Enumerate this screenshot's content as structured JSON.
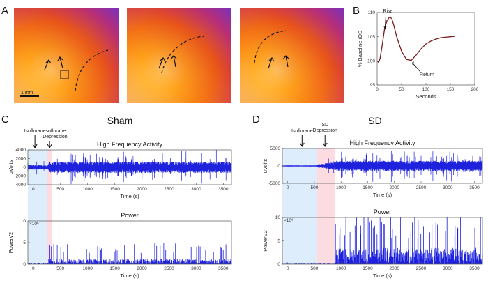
{
  "panels": {
    "a": "A",
    "b": "B",
    "c": "C",
    "d": "D"
  },
  "colors": {
    "signal": "#1e22dd",
    "iso_shade": "#d6e8fb",
    "sd_shade": "#fbd6dc",
    "ios_line": "#7a1a1a"
  },
  "scale_bar": "1 mm",
  "chart_data": [
    {
      "id": "ios",
      "type": "line",
      "title": "",
      "xlabel": "Seconds",
      "ylabel": "% Baseline iOS",
      "xlim": [
        0,
        200
      ],
      "ylim": [
        95,
        110
      ],
      "xticks": [
        "0",
        "50",
        "100",
        "150",
        "200"
      ],
      "yticks": [
        "95",
        "100",
        "105",
        "110"
      ],
      "x": [
        0,
        3,
        6,
        10,
        15,
        20,
        25,
        30,
        35,
        40,
        50,
        60,
        70,
        80,
        90,
        100,
        110,
        120,
        130,
        140,
        150,
        160
      ],
      "y": [
        100,
        99.7,
        100.5,
        103,
        106.5,
        108.3,
        109,
        108.8,
        107,
        105,
        102,
        100.3,
        100.1,
        101.2,
        102.5,
        103.5,
        104.1,
        104.5,
        104.8,
        104.9,
        105,
        105.1
      ],
      "annotations": [
        "Rise",
        "Return"
      ]
    },
    {
      "id": "sham_hfa",
      "type": "line",
      "title": "High Frequency Activity",
      "xlabel": "Time (s)",
      "ylabel": "uVolts",
      "xlim": [
        -100,
        3650
      ],
      "ylim": [
        -4000,
        4000
      ],
      "xticks": [
        "0",
        "500",
        "1000",
        "1500",
        "2000",
        "2500",
        "3000",
        "3500"
      ],
      "yticks": [
        "4000",
        "2000",
        "0",
        "-2000",
        "-4000"
      ],
      "shading": {
        "isoflurane": [
          -100,
          260
        ],
        "depression": [
          260,
          350
        ]
      },
      "annotations": [
        "Isoflurane",
        "Isoflurane Depression"
      ]
    },
    {
      "id": "sham_power",
      "type": "line",
      "title": "Power",
      "xlabel": "Time (s)",
      "ylabel": "PowerV2",
      "exponent": "×10⁶",
      "xlim": [
        -100,
        3650
      ],
      "ylim": [
        0,
        10
      ],
      "xticks": [
        "0",
        "500",
        "1000",
        "1500",
        "2000",
        "2500",
        "3000",
        "3500"
      ],
      "yticks": [
        "0",
        "5",
        "10"
      ]
    },
    {
      "id": "sd_hfa",
      "type": "line",
      "title": "High Frequency Activity",
      "xlabel": "Time (s)",
      "ylabel": "uVolts",
      "xlim": [
        -100,
        3650
      ],
      "ylim": [
        -5000,
        5000
      ],
      "xticks": [
        "0",
        "500",
        "1000",
        "1500",
        "2000",
        "2500",
        "3000",
        "3500"
      ],
      "yticks": [
        "5000",
        "0",
        "-5000"
      ],
      "shading": {
        "isoflurane": [
          -100,
          540
        ],
        "depression": [
          540,
          880
        ]
      },
      "annotations": [
        "Isoflurane",
        "SD Depression"
      ]
    },
    {
      "id": "sd_power",
      "type": "line",
      "title": "Power",
      "xlabel": "Time (s)",
      "ylabel": "PowerV2",
      "exponent": "×10⁶",
      "xlim": [
        -100,
        3650
      ],
      "ylim": [
        0,
        10
      ],
      "xticks": [
        "0",
        "500",
        "1000",
        "1500",
        "2000",
        "2500",
        "3000",
        "3500"
      ],
      "yticks": [
        "0",
        "5",
        "10"
      ]
    }
  ],
  "group_titles": {
    "sham": "Sham",
    "sd": "SD"
  }
}
